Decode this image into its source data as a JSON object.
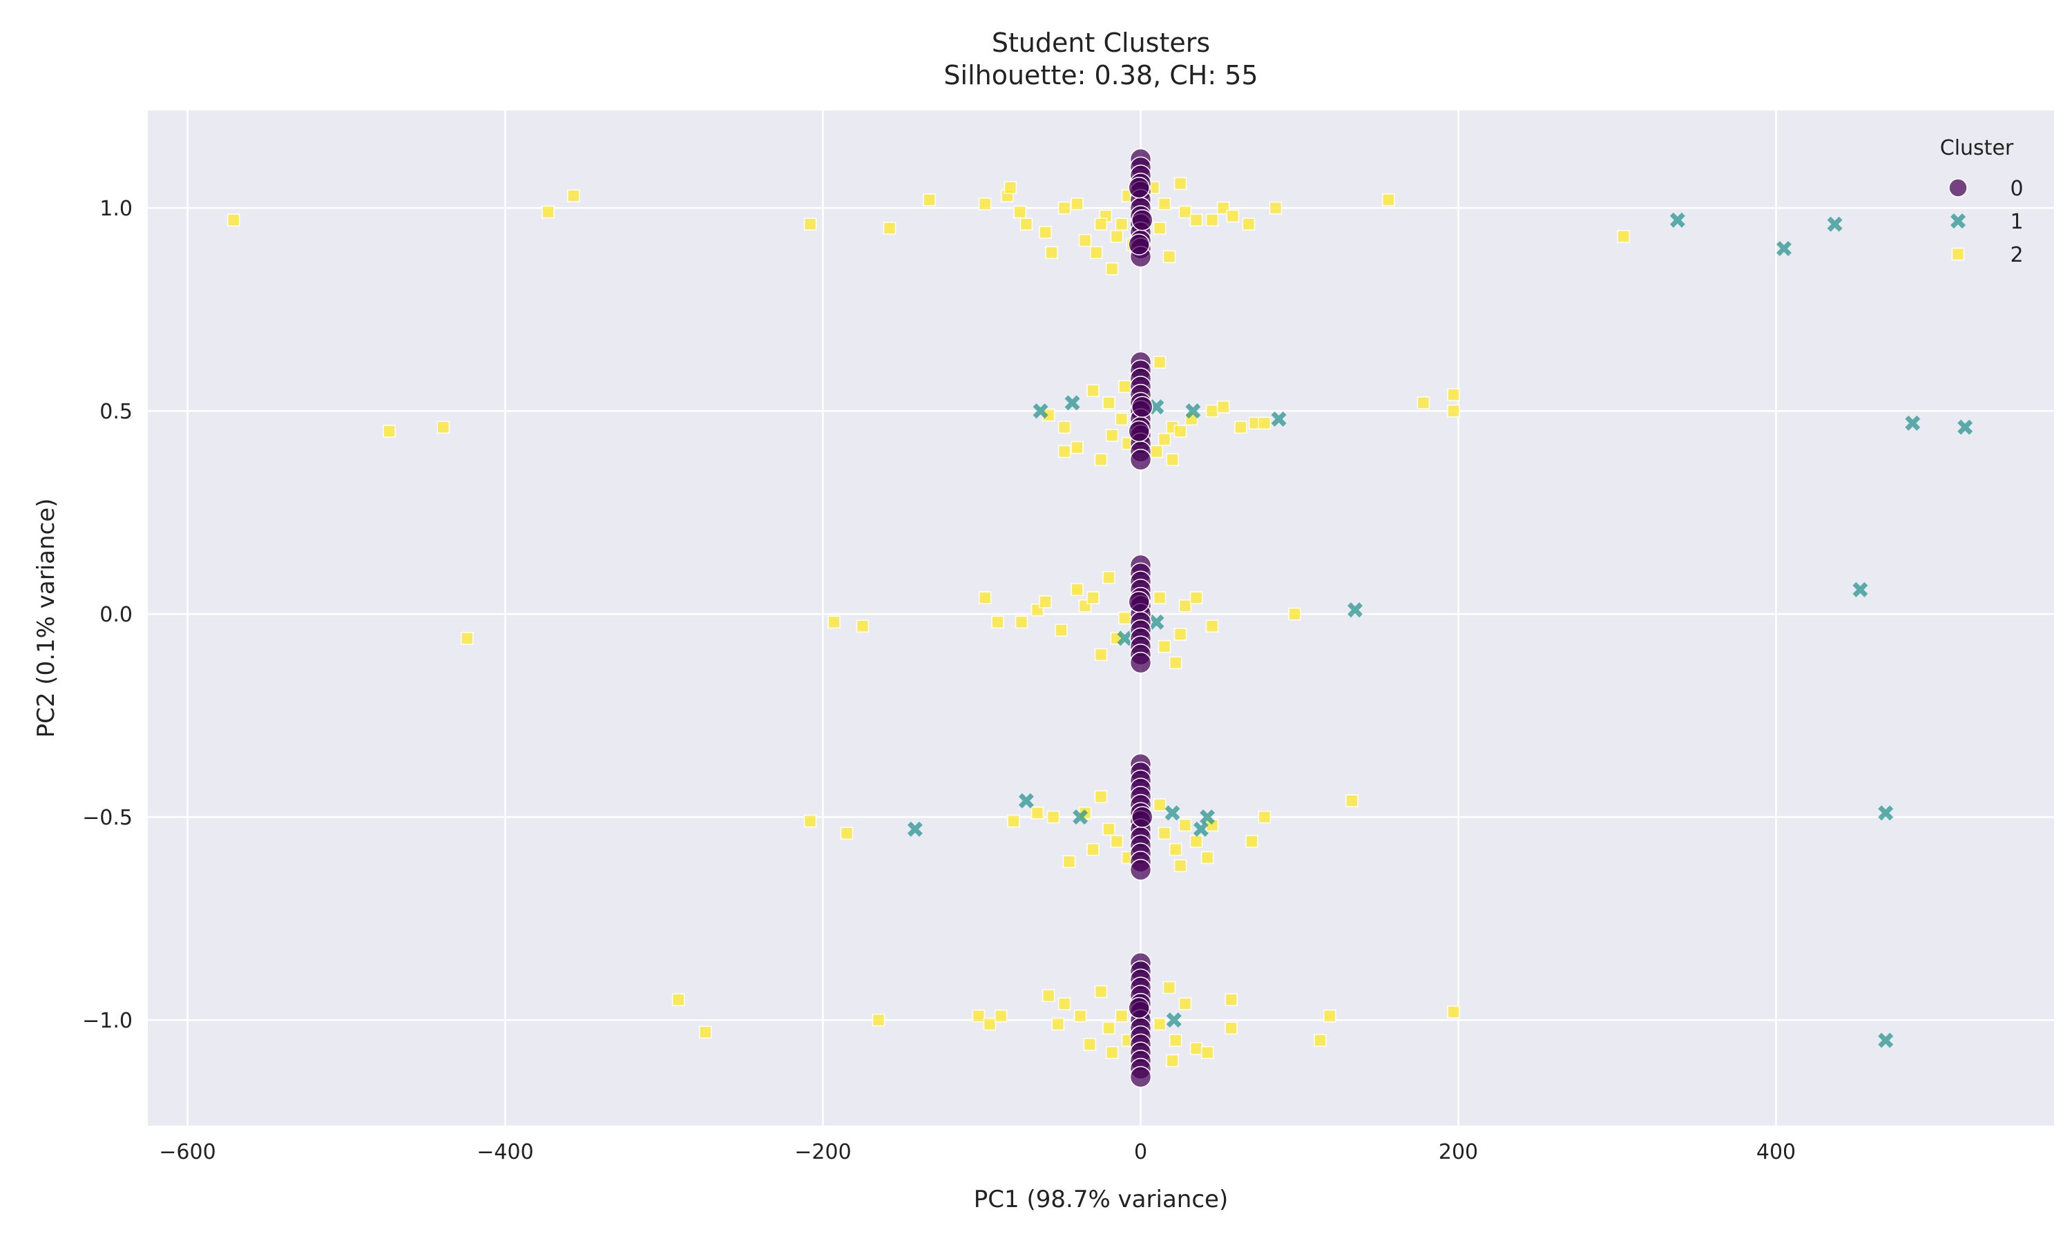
{
  "chart_data": {
    "type": "scatter",
    "title": "Student Clusters",
    "subtitle": "Silhouette: 0.38, CH: 55",
    "xlabel": "PC1 (98.7% variance)",
    "ylabel": "PC2 (0.1% variance)",
    "xlim": [
      -625,
      575
    ],
    "ylim": [
      -1.26,
      1.24
    ],
    "xticks": [
      -600,
      -400,
      -200,
      0,
      200,
      400
    ],
    "xtick_labels": [
      "−600",
      "−400",
      "−200",
      "0",
      "200",
      "400"
    ],
    "yticks": [
      -1.0,
      -0.5,
      0.0,
      0.5,
      1.0
    ],
    "ytick_labels": [
      "−1.0",
      "−0.5",
      "0.0",
      "0.5",
      "1.0"
    ],
    "grid": true,
    "legend": {
      "title": "Cluster",
      "placement": "top-right"
    },
    "series": [
      {
        "name": "0",
        "marker": "circle",
        "color": "#440154",
        "points": [
          [
            0,
            1.12
          ],
          [
            0,
            1.1
          ],
          [
            0,
            1.08
          ],
          [
            0,
            1.06
          ],
          [
            0,
            1.04
          ],
          [
            0,
            1.02
          ],
          [
            0,
            1.0
          ],
          [
            0,
            0.98
          ],
          [
            0,
            0.96
          ],
          [
            0,
            0.94
          ],
          [
            0,
            0.92
          ],
          [
            0,
            0.9
          ],
          [
            0,
            0.88
          ],
          [
            -1,
            1.05
          ],
          [
            1,
            0.97
          ],
          [
            -1,
            0.91
          ],
          [
            0,
            0.62
          ],
          [
            0,
            0.6
          ],
          [
            0,
            0.58
          ],
          [
            0,
            0.56
          ],
          [
            0,
            0.54
          ],
          [
            0,
            0.52
          ],
          [
            0,
            0.5
          ],
          [
            0,
            0.48
          ],
          [
            0,
            0.46
          ],
          [
            0,
            0.44
          ],
          [
            0,
            0.42
          ],
          [
            0,
            0.4
          ],
          [
            0,
            0.38
          ],
          [
            1,
            0.51
          ],
          [
            -1,
            0.45
          ],
          [
            0,
            0.12
          ],
          [
            0,
            0.1
          ],
          [
            0,
            0.08
          ],
          [
            0,
            0.06
          ],
          [
            0,
            0.04
          ],
          [
            0,
            0.02
          ],
          [
            0,
            0.0
          ],
          [
            0,
            -0.02
          ],
          [
            0,
            -0.04
          ],
          [
            0,
            -0.06
          ],
          [
            0,
            -0.08
          ],
          [
            0,
            -0.1
          ],
          [
            0,
            -0.12
          ],
          [
            -1,
            0.03
          ],
          [
            0,
            -0.37
          ],
          [
            0,
            -0.39
          ],
          [
            0,
            -0.41
          ],
          [
            0,
            -0.43
          ],
          [
            0,
            -0.45
          ],
          [
            0,
            -0.47
          ],
          [
            0,
            -0.49
          ],
          [
            0,
            -0.51
          ],
          [
            0,
            -0.53
          ],
          [
            0,
            -0.55
          ],
          [
            0,
            -0.57
          ],
          [
            0,
            -0.59
          ],
          [
            0,
            -0.61
          ],
          [
            0,
            -0.63
          ],
          [
            1,
            -0.5
          ],
          [
            0,
            -0.86
          ],
          [
            0,
            -0.88
          ],
          [
            0,
            -0.9
          ],
          [
            0,
            -0.92
          ],
          [
            0,
            -0.94
          ],
          [
            0,
            -0.96
          ],
          [
            0,
            -0.98
          ],
          [
            0,
            -1.0
          ],
          [
            0,
            -1.02
          ],
          [
            0,
            -1.04
          ],
          [
            0,
            -1.06
          ],
          [
            0,
            -1.08
          ],
          [
            0,
            -1.1
          ],
          [
            0,
            -1.12
          ],
          [
            0,
            -1.14
          ],
          [
            -1,
            -0.97
          ]
        ]
      },
      {
        "name": "1",
        "marker": "x",
        "color": "#21918c",
        "points": [
          [
            338,
            0.97
          ],
          [
            405,
            0.9
          ],
          [
            437,
            0.96
          ],
          [
            -63,
            0.5
          ],
          [
            -43,
            0.52
          ],
          [
            10,
            0.51
          ],
          [
            33,
            0.5
          ],
          [
            87,
            0.48
          ],
          [
            486,
            0.47
          ],
          [
            519,
            0.46
          ],
          [
            135,
            0.01
          ],
          [
            453,
            0.06
          ],
          [
            -10,
            -0.06
          ],
          [
            10,
            -0.02
          ],
          [
            -72,
            -0.46
          ],
          [
            -38,
            -0.5
          ],
          [
            -142,
            -0.53
          ],
          [
            20,
            -0.49
          ],
          [
            38,
            -0.53
          ],
          [
            42,
            -0.5
          ],
          [
            469,
            -0.49
          ],
          [
            0,
            -0.87
          ],
          [
            21,
            -1.0
          ],
          [
            469,
            -1.05
          ]
        ]
      },
      {
        "name": "2",
        "marker": "square",
        "color": "#fde725",
        "points": [
          [
            -571,
            0.97
          ],
          [
            -373,
            0.99
          ],
          [
            -357,
            1.03
          ],
          [
            -208,
            0.96
          ],
          [
            -158,
            0.95
          ],
          [
            -133,
            1.02
          ],
          [
            -98,
            1.01
          ],
          [
            -84,
            1.03
          ],
          [
            -82,
            1.05
          ],
          [
            -76,
            0.99
          ],
          [
            -72,
            0.96
          ],
          [
            -60,
            0.94
          ],
          [
            -56,
            0.89
          ],
          [
            -48,
            1.0
          ],
          [
            -40,
            1.01
          ],
          [
            -35,
            0.92
          ],
          [
            -28,
            0.89
          ],
          [
            -22,
            0.98
          ],
          [
            -18,
            0.85
          ],
          [
            -12,
            0.96
          ],
          [
            -8,
            1.03
          ],
          [
            -5,
            0.91
          ],
          [
            8,
            1.05
          ],
          [
            12,
            0.95
          ],
          [
            18,
            0.88
          ],
          [
            25,
            1.06
          ],
          [
            28,
            0.99
          ],
          [
            35,
            0.97
          ],
          [
            45,
            0.97
          ],
          [
            52,
            1.0
          ],
          [
            58,
            0.98
          ],
          [
            68,
            0.96
          ],
          [
            85,
            1.0
          ],
          [
            156,
            1.02
          ],
          [
            304,
            0.93
          ],
          [
            -15,
            0.93
          ],
          [
            15,
            1.01
          ],
          [
            -25,
            0.96
          ],
          [
            -473,
            0.45
          ],
          [
            -439,
            0.46
          ],
          [
            -58,
            0.49
          ],
          [
            -48,
            0.46
          ],
          [
            -40,
            0.41
          ],
          [
            -48,
            0.4
          ],
          [
            -30,
            0.55
          ],
          [
            -25,
            0.38
          ],
          [
            -18,
            0.44
          ],
          [
            -12,
            0.48
          ],
          [
            -8,
            0.42
          ],
          [
            12,
            0.62
          ],
          [
            15,
            0.43
          ],
          [
            20,
            0.46
          ],
          [
            25,
            0.45
          ],
          [
            32,
            0.48
          ],
          [
            45,
            0.5
          ],
          [
            52,
            0.51
          ],
          [
            63,
            0.46
          ],
          [
            72,
            0.47
          ],
          [
            78,
            0.47
          ],
          [
            178,
            0.52
          ],
          [
            197,
            0.54
          ],
          [
            197,
            0.5
          ],
          [
            -20,
            0.52
          ],
          [
            -10,
            0.56
          ],
          [
            10,
            0.4
          ],
          [
            20,
            0.38
          ],
          [
            -424,
            -0.06
          ],
          [
            -193,
            -0.02
          ],
          [
            -175,
            -0.03
          ],
          [
            -98,
            0.04
          ],
          [
            -90,
            -0.02
          ],
          [
            -75,
            -0.02
          ],
          [
            -65,
            0.01
          ],
          [
            -60,
            0.03
          ],
          [
            -50,
            -0.04
          ],
          [
            -40,
            0.06
          ],
          [
            -35,
            0.02
          ],
          [
            -25,
            -0.1
          ],
          [
            -20,
            0.09
          ],
          [
            -15,
            -0.06
          ],
          [
            -10,
            -0.01
          ],
          [
            12,
            0.04
          ],
          [
            15,
            -0.08
          ],
          [
            22,
            -0.12
          ],
          [
            28,
            0.02
          ],
          [
            35,
            0.04
          ],
          [
            45,
            -0.03
          ],
          [
            97,
            0.0
          ],
          [
            -30,
            0.04
          ],
          [
            25,
            -0.05
          ],
          [
            -208,
            -0.51
          ],
          [
            -185,
            -0.54
          ],
          [
            -80,
            -0.51
          ],
          [
            -65,
            -0.49
          ],
          [
            -55,
            -0.5
          ],
          [
            -45,
            -0.61
          ],
          [
            -35,
            -0.49
          ],
          [
            -25,
            -0.45
          ],
          [
            -20,
            -0.53
          ],
          [
            -15,
            -0.56
          ],
          [
            -8,
            -0.6
          ],
          [
            12,
            -0.47
          ],
          [
            15,
            -0.54
          ],
          [
            22,
            -0.58
          ],
          [
            28,
            -0.52
          ],
          [
            35,
            -0.56
          ],
          [
            42,
            -0.6
          ],
          [
            45,
            -0.52
          ],
          [
            70,
            -0.56
          ],
          [
            78,
            -0.5
          ],
          [
            133,
            -0.46
          ],
          [
            -30,
            -0.58
          ],
          [
            25,
            -0.62
          ],
          [
            -291,
            -0.95
          ],
          [
            -274,
            -1.03
          ],
          [
            -165,
            -1.0
          ],
          [
            -102,
            -0.99
          ],
          [
            -95,
            -1.01
          ],
          [
            -88,
            -0.99
          ],
          [
            -58,
            -0.94
          ],
          [
            -52,
            -1.01
          ],
          [
            -48,
            -0.96
          ],
          [
            -38,
            -0.99
          ],
          [
            -32,
            -1.06
          ],
          [
            -25,
            -0.93
          ],
          [
            -18,
            -1.08
          ],
          [
            -12,
            -0.99
          ],
          [
            -8,
            -1.05
          ],
          [
            12,
            -1.01
          ],
          [
            18,
            -0.92
          ],
          [
            22,
            -1.05
          ],
          [
            28,
            -0.96
          ],
          [
            35,
            -1.07
          ],
          [
            42,
            -1.08
          ],
          [
            57,
            -0.95
          ],
          [
            57,
            -1.02
          ],
          [
            113,
            -1.05
          ],
          [
            119,
            -0.99
          ],
          [
            197,
            -0.98
          ],
          [
            -20,
            -1.02
          ],
          [
            20,
            -1.1
          ]
        ]
      }
    ]
  }
}
